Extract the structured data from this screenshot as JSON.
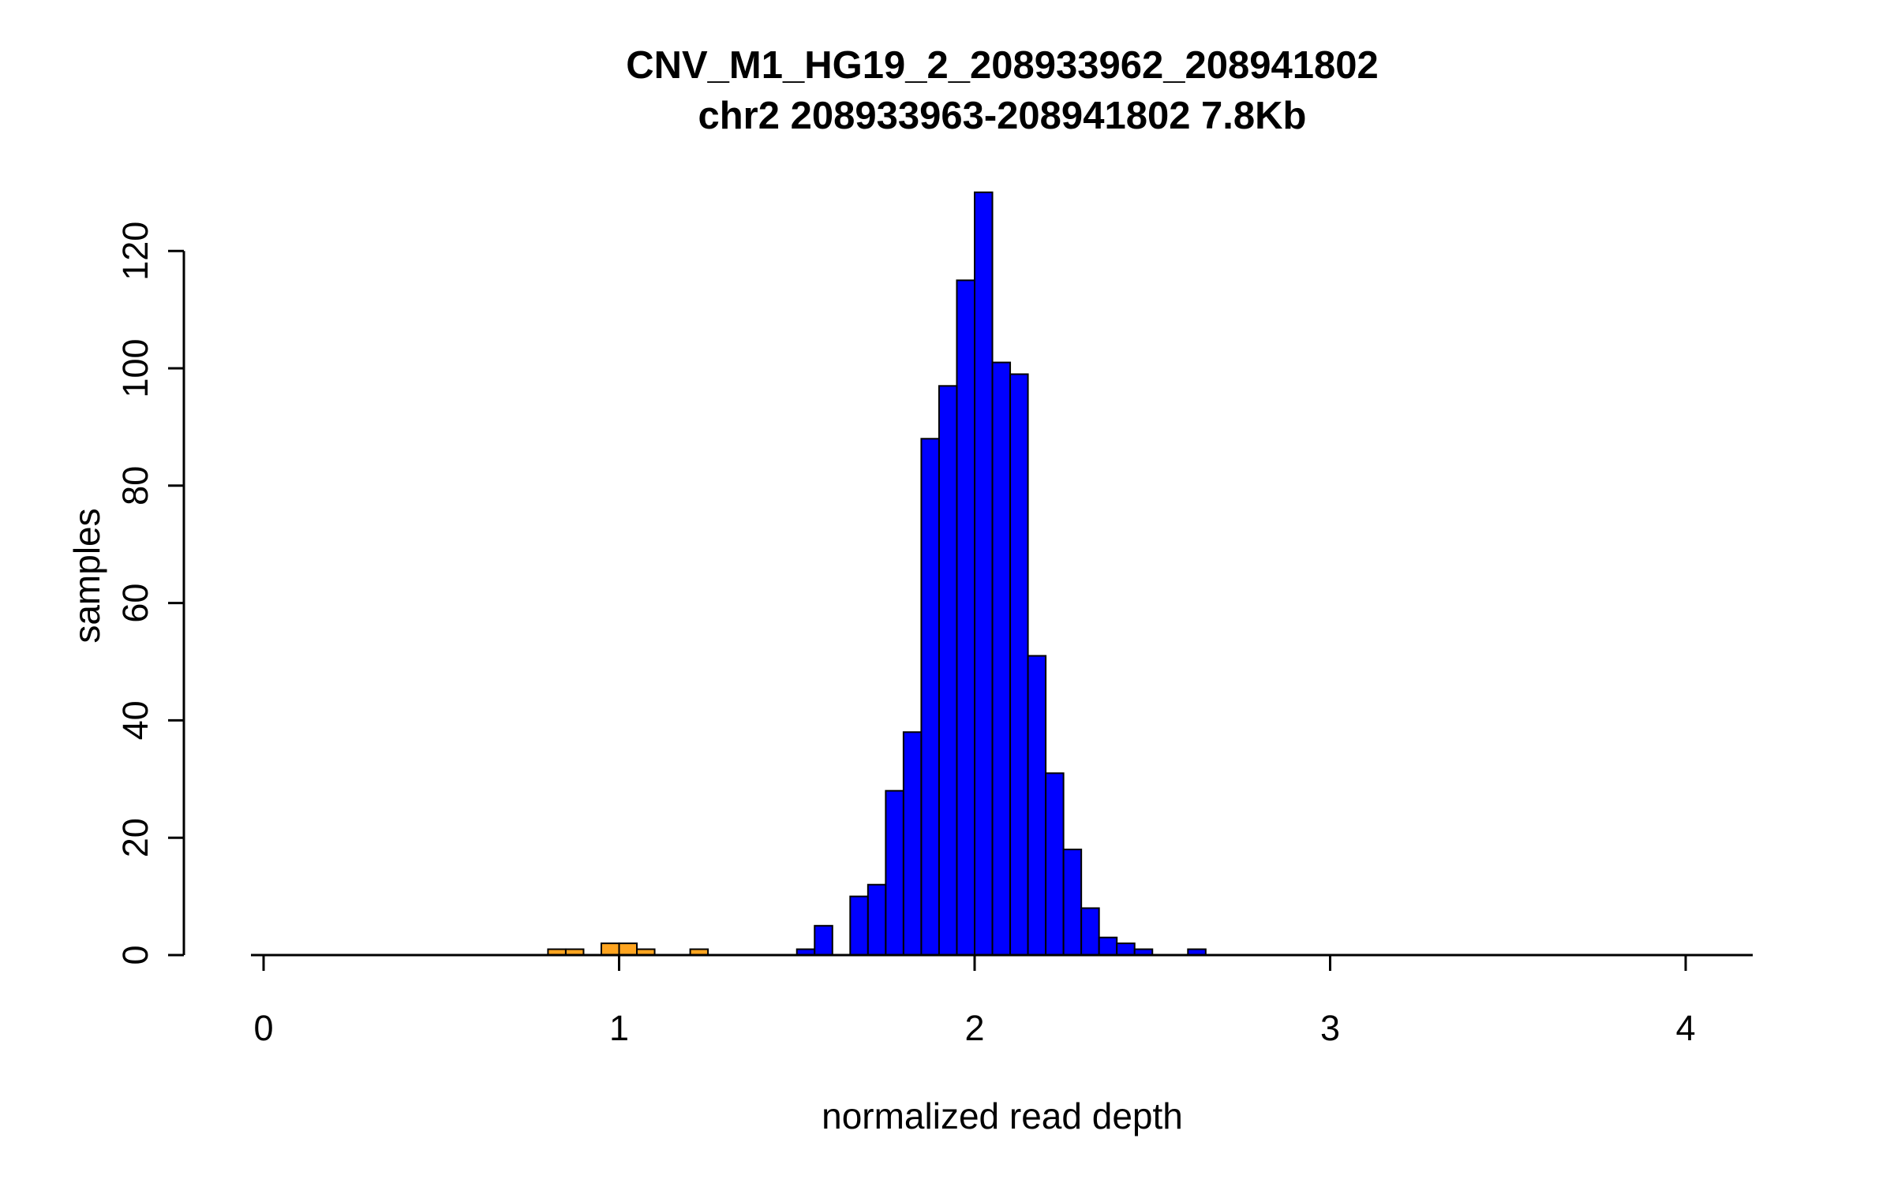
{
  "title": {
    "line1": "CNV_M1_HG19_2_208933962_208941802",
    "line2": "chr2 208933963-208941802 7.8Kb"
  },
  "axes": {
    "xlabel": "normalized read depth",
    "ylabel": "samples",
    "x_ticks": [
      0,
      1,
      2,
      3,
      4
    ],
    "y_ticks": [
      0,
      20,
      40,
      60,
      80,
      100,
      120
    ],
    "x_range": [
      0,
      4.2
    ],
    "y_range": [
      0,
      130
    ]
  },
  "chart_data": {
    "type": "bar",
    "subtype": "histogram",
    "title": "CNV_M1_HG19_2_208933962_208941802",
    "subtitle": "chr2 208933963-208941802 7.8Kb",
    "xlabel": "normalized read depth",
    "ylabel": "samples",
    "xlim": [
      0,
      4.2
    ],
    "ylim": [
      0,
      130
    ],
    "grid": false,
    "legend": false,
    "bin_width": 0.05,
    "colors": {
      "blue": "#0000FF",
      "orange": "#FFA520",
      "axis": "#000000"
    },
    "bins": [
      {
        "x": 0.8,
        "count": 1,
        "color": "orange"
      },
      {
        "x": 0.85,
        "count": 1,
        "color": "orange"
      },
      {
        "x": 0.95,
        "count": 2,
        "color": "orange"
      },
      {
        "x": 1.0,
        "count": 2,
        "color": "orange"
      },
      {
        "x": 1.05,
        "count": 1,
        "color": "orange"
      },
      {
        "x": 1.2,
        "count": 1,
        "color": "orange"
      },
      {
        "x": 1.5,
        "count": 1,
        "color": "blue"
      },
      {
        "x": 1.55,
        "count": 5,
        "color": "blue"
      },
      {
        "x": 1.65,
        "count": 10,
        "color": "blue"
      },
      {
        "x": 1.7,
        "count": 12,
        "color": "blue"
      },
      {
        "x": 1.75,
        "count": 28,
        "color": "blue"
      },
      {
        "x": 1.8,
        "count": 38,
        "color": "blue"
      },
      {
        "x": 1.85,
        "count": 88,
        "color": "blue"
      },
      {
        "x": 1.9,
        "count": 97,
        "color": "blue"
      },
      {
        "x": 1.95,
        "count": 115,
        "color": "blue"
      },
      {
        "x": 2.0,
        "count": 130,
        "color": "blue"
      },
      {
        "x": 2.05,
        "count": 101,
        "color": "blue"
      },
      {
        "x": 2.1,
        "count": 99,
        "color": "blue"
      },
      {
        "x": 2.15,
        "count": 51,
        "color": "blue"
      },
      {
        "x": 2.2,
        "count": 31,
        "color": "blue"
      },
      {
        "x": 2.25,
        "count": 18,
        "color": "blue"
      },
      {
        "x": 2.3,
        "count": 8,
        "color": "blue"
      },
      {
        "x": 2.35,
        "count": 3,
        "color": "blue"
      },
      {
        "x": 2.4,
        "count": 2,
        "color": "blue"
      },
      {
        "x": 2.45,
        "count": 1,
        "color": "blue"
      },
      {
        "x": 2.6,
        "count": 1,
        "color": "blue"
      }
    ]
  }
}
